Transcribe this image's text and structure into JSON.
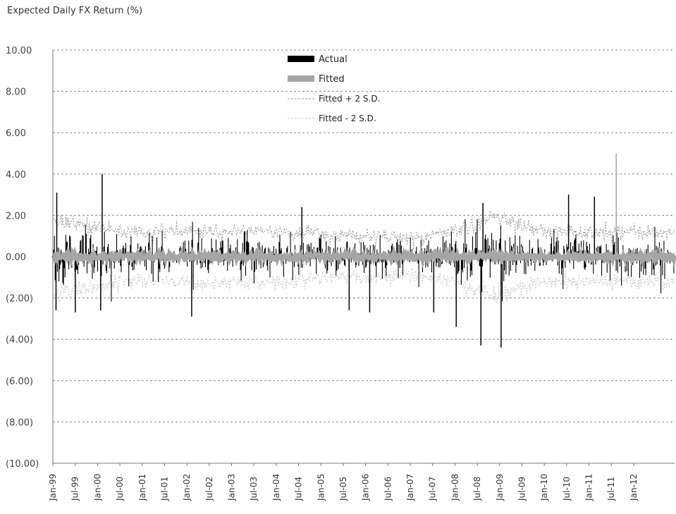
{
  "chart_data": {
    "type": "line",
    "title": "Expected Daily FX Return (%)",
    "xlabel": "",
    "ylabel": "",
    "ylim": [
      -10,
      10
    ],
    "y_ticks": [
      "10.00",
      "8.00",
      "6.00",
      "4.00",
      "2.00",
      "0.00",
      "(2.00)",
      "(4.00)",
      "(6.00)",
      "(8.00)",
      "(10.00)"
    ],
    "y_tick_values": [
      10,
      8,
      6,
      4,
      2,
      0,
      -2,
      -4,
      -6,
      -8,
      -10
    ],
    "x_ticks": [
      "Jan-99",
      "Jul-99",
      "Jan-00",
      "Jul-00",
      "Jan-01",
      "Jul-01",
      "Jan-02",
      "Jul-02",
      "Jan-03",
      "Jul-03",
      "Jan-04",
      "Jul-04",
      "Jan-05",
      "Jul-05",
      "Jan-06",
      "Jul-06",
      "Jan-07",
      "Jul-07",
      "Jan-08",
      "Jul-08",
      "Jan-09",
      "Jul-09",
      "Jan-10",
      "Jul-10",
      "Jan-11",
      "Jul-11",
      "Jan-12"
    ],
    "xlim": [
      "Jan-99",
      "Nov-12"
    ],
    "grid": true,
    "legend_position": "top-center",
    "series": [
      {
        "name": "Actual",
        "style": "bar",
        "color": "#000000"
      },
      {
        "name": "Fitted",
        "style": "thick-line",
        "color": "#a6a6a6"
      },
      {
        "name": "Fitted + 2 S.D.",
        "style": "dashed",
        "color": "#9a9a9a"
      },
      {
        "name": "Fitted - 2 S.D.",
        "style": "dashed",
        "color": "#c8c8c8"
      }
    ],
    "band_sd_by_period": [
      {
        "period": "Jan-99",
        "sd": 1.7
      },
      {
        "period": "Jul-99",
        "sd": 1.55
      },
      {
        "period": "Jan-00",
        "sd": 1.45
      },
      {
        "period": "Jul-00",
        "sd": 1.25
      },
      {
        "period": "Jan-01",
        "sd": 1.15
      },
      {
        "period": "Jul-01",
        "sd": 1.2
      },
      {
        "period": "Jan-02",
        "sd": 1.25
      },
      {
        "period": "Jul-02",
        "sd": 1.3
      },
      {
        "period": "Jan-03",
        "sd": 1.2
      },
      {
        "period": "Jul-03",
        "sd": 1.25
      },
      {
        "period": "Jan-04",
        "sd": 1.2
      },
      {
        "period": "Jul-04",
        "sd": 1.1
      },
      {
        "period": "Jan-05",
        "sd": 1.05
      },
      {
        "period": "Jul-05",
        "sd": 1.0
      },
      {
        "period": "Jan-06",
        "sd": 0.95
      },
      {
        "period": "Jul-06",
        "sd": 0.95
      },
      {
        "period": "Jan-07",
        "sd": 0.9
      },
      {
        "period": "Jul-07",
        "sd": 1.0
      },
      {
        "period": "Jan-08",
        "sd": 1.3
      },
      {
        "period": "Jul-08",
        "sd": 1.6
      },
      {
        "period": "Jan-09",
        "sd": 1.95
      },
      {
        "period": "Jul-09",
        "sd": 1.5
      },
      {
        "period": "Jan-10",
        "sd": 1.2
      },
      {
        "period": "Jul-10",
        "sd": 1.25
      },
      {
        "period": "Jan-11",
        "sd": 1.15
      },
      {
        "period": "Jul-11",
        "sd": 1.2
      },
      {
        "period": "Jan-12",
        "sd": 1.2
      }
    ],
    "notable_spikes": [
      {
        "date": "Jan-99",
        "value": 3.1
      },
      {
        "date": "Jan-99",
        "value": -2.6
      },
      {
        "date": "Jul-99",
        "value": -2.7
      },
      {
        "date": "Jan-00",
        "value": 4.0
      },
      {
        "date": "Jan-00",
        "value": -2.6
      },
      {
        "date": "Jan-02",
        "value": -2.9
      },
      {
        "date": "Jul-04",
        "value": 2.4
      },
      {
        "date": "Jul-05",
        "value": -2.6
      },
      {
        "date": "Jan-06",
        "value": -2.7
      },
      {
        "date": "Jul-07",
        "value": -2.7
      },
      {
        "date": "Jan-08",
        "value": -3.4
      },
      {
        "date": "Jul-08",
        "value": -4.3
      },
      {
        "date": "Jul-08",
        "value": 2.6
      },
      {
        "date": "Jan-09",
        "value": -4.4
      },
      {
        "date": "Jul-10",
        "value": 3.0
      },
      {
        "date": "Jan-11",
        "value": 2.9
      },
      {
        "date": "Jul-11",
        "value": 5.0
      }
    ]
  }
}
